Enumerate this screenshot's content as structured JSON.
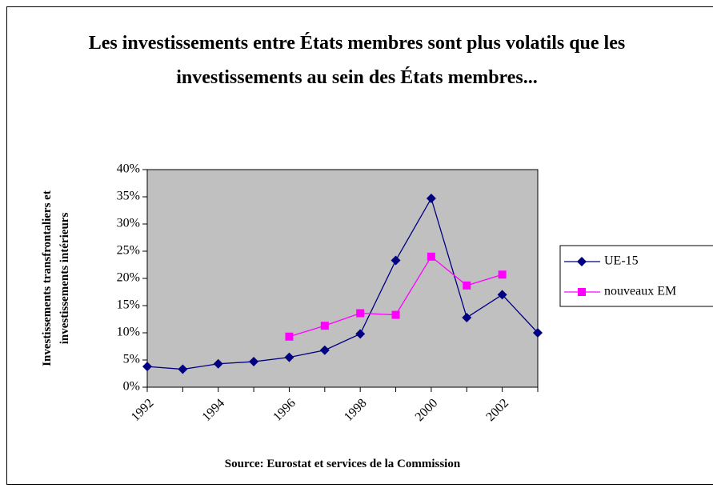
{
  "chart_data": {
    "type": "line",
    "title": "Les investissements entre États membres sont plus volatils que les investissements au sein des États membres...",
    "y_label": "Investissements transfrontaliers et investissements intérieurs",
    "source": "Source: Eurostat et services de la Commission",
    "categories": [
      "1992",
      null,
      "1994",
      null,
      "1996",
      null,
      "1998",
      null,
      "2000",
      null,
      "2002",
      null
    ],
    "series": [
      {
        "name": "UE-15",
        "color": "#000080",
        "marker": "diamond",
        "values": [
          3.8,
          3.3,
          4.3,
          4.7,
          5.5,
          6.8,
          9.8,
          23.3,
          34.7,
          12.8,
          17.0,
          10.0
        ]
      },
      {
        "name": "nouveaux EM",
        "color": "#ff00ff",
        "marker": "square",
        "values": [
          null,
          null,
          null,
          null,
          9.3,
          11.3,
          13.6,
          13.3,
          24.0,
          18.7,
          20.7,
          null
        ]
      }
    ],
    "ylim": [
      0,
      40
    ],
    "yticks": [
      {
        "value": 0,
        "label": "0%"
      },
      {
        "value": 5,
        "label": "5%"
      },
      {
        "value": 10,
        "label": "10%"
      },
      {
        "value": 15,
        "label": "15%"
      },
      {
        "value": 20,
        "label": "20%"
      },
      {
        "value": 25,
        "label": "25%"
      },
      {
        "value": 30,
        "label": "30%"
      },
      {
        "value": 35,
        "label": "35%"
      },
      {
        "value": 40,
        "label": "40%"
      }
    ],
    "plot_background": "#c0c0c0",
    "legend": "right"
  }
}
